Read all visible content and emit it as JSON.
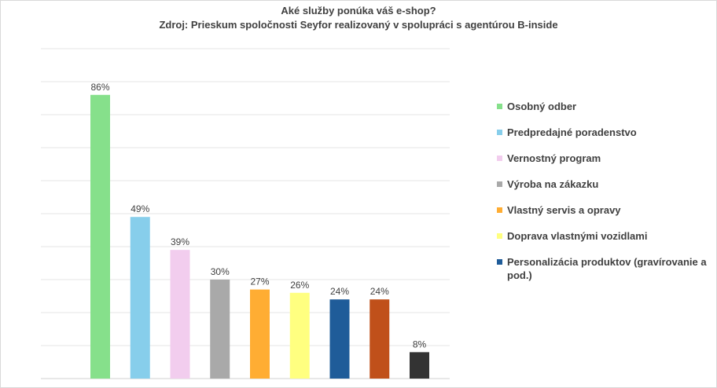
{
  "chart_data": {
    "type": "bar",
    "title": "Aké služby ponúka váš e-shop?",
    "subtitle": "Zdroj: Prieskum spoločnosti Seyfor realizovaný v spolupráci s agentúrou B-inside",
    "ylim": [
      0,
      100
    ],
    "grid": true,
    "legend_position": "right",
    "series": [
      {
        "name": "Osobný odber",
        "value": 86,
        "label": "86%",
        "color": "#86e08b"
      },
      {
        "name": "Predpredajné poradenstvo",
        "value": 49,
        "label": "49%",
        "color": "#87ceeb"
      },
      {
        "name": "Vernostný program",
        "value": 39,
        "label": "39%",
        "color": "#f2cdee"
      },
      {
        "name": "Výroba na zákazku",
        "value": 30,
        "label": "30%",
        "color": "#a9a9a9"
      },
      {
        "name": "Vlastný servis a opravy",
        "value": 27,
        "label": "27%",
        "color": "#ffad33"
      },
      {
        "name": "Doprava vlastnými vozidlami",
        "value": 26,
        "label": "26%",
        "color": "#ffff80"
      },
      {
        "name": "Personalizácia produktov (gravírovanie a pod.)",
        "value": 24,
        "label": "24%",
        "color": "#1f5c99"
      },
      {
        "name": "",
        "value": 24,
        "label": "24%",
        "color": "#c0501a"
      },
      {
        "name": "",
        "value": 8,
        "label": "8%",
        "color": "#333333"
      }
    ]
  }
}
